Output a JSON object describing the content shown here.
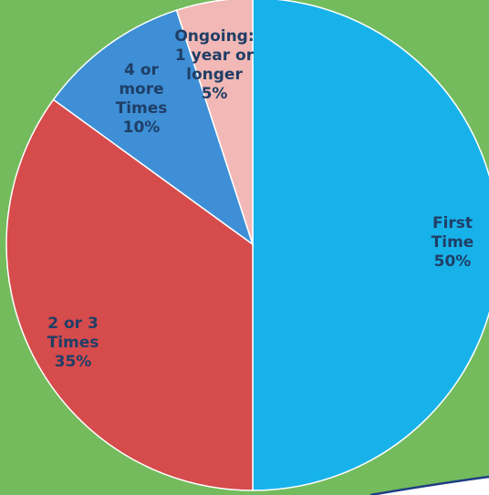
{
  "chart_data": {
    "type": "pie",
    "title": "",
    "start_angle_deg": 0,
    "direction": "clockwise",
    "slices": [
      {
        "key": "first_time",
        "label_lines": [
          "First",
          "Time",
          "50%"
        ],
        "value": 50,
        "color": "#18b2ea",
        "label_color": "#1f3e66"
      },
      {
        "key": "two_or_three",
        "label_lines": [
          "2 or 3",
          "Times",
          "35%"
        ],
        "value": 35,
        "color": "#d64b4c",
        "label_color": "#1f3e66"
      },
      {
        "key": "four_or_more",
        "label_lines": [
          "4 or",
          "more",
          "Times",
          "10%"
        ],
        "value": 10,
        "color": "#3e8fd6",
        "label_color": "#1f3e66"
      },
      {
        "key": "ongoing",
        "label_lines": [
          "Ongoing:",
          "1 year or",
          "longer",
          "5%"
        ],
        "value": 5,
        "color": "#f2b8b5",
        "label_color": "#1f3e66"
      }
    ],
    "background_color": "#74bb5d",
    "slice_border_color": "#ffffff"
  }
}
